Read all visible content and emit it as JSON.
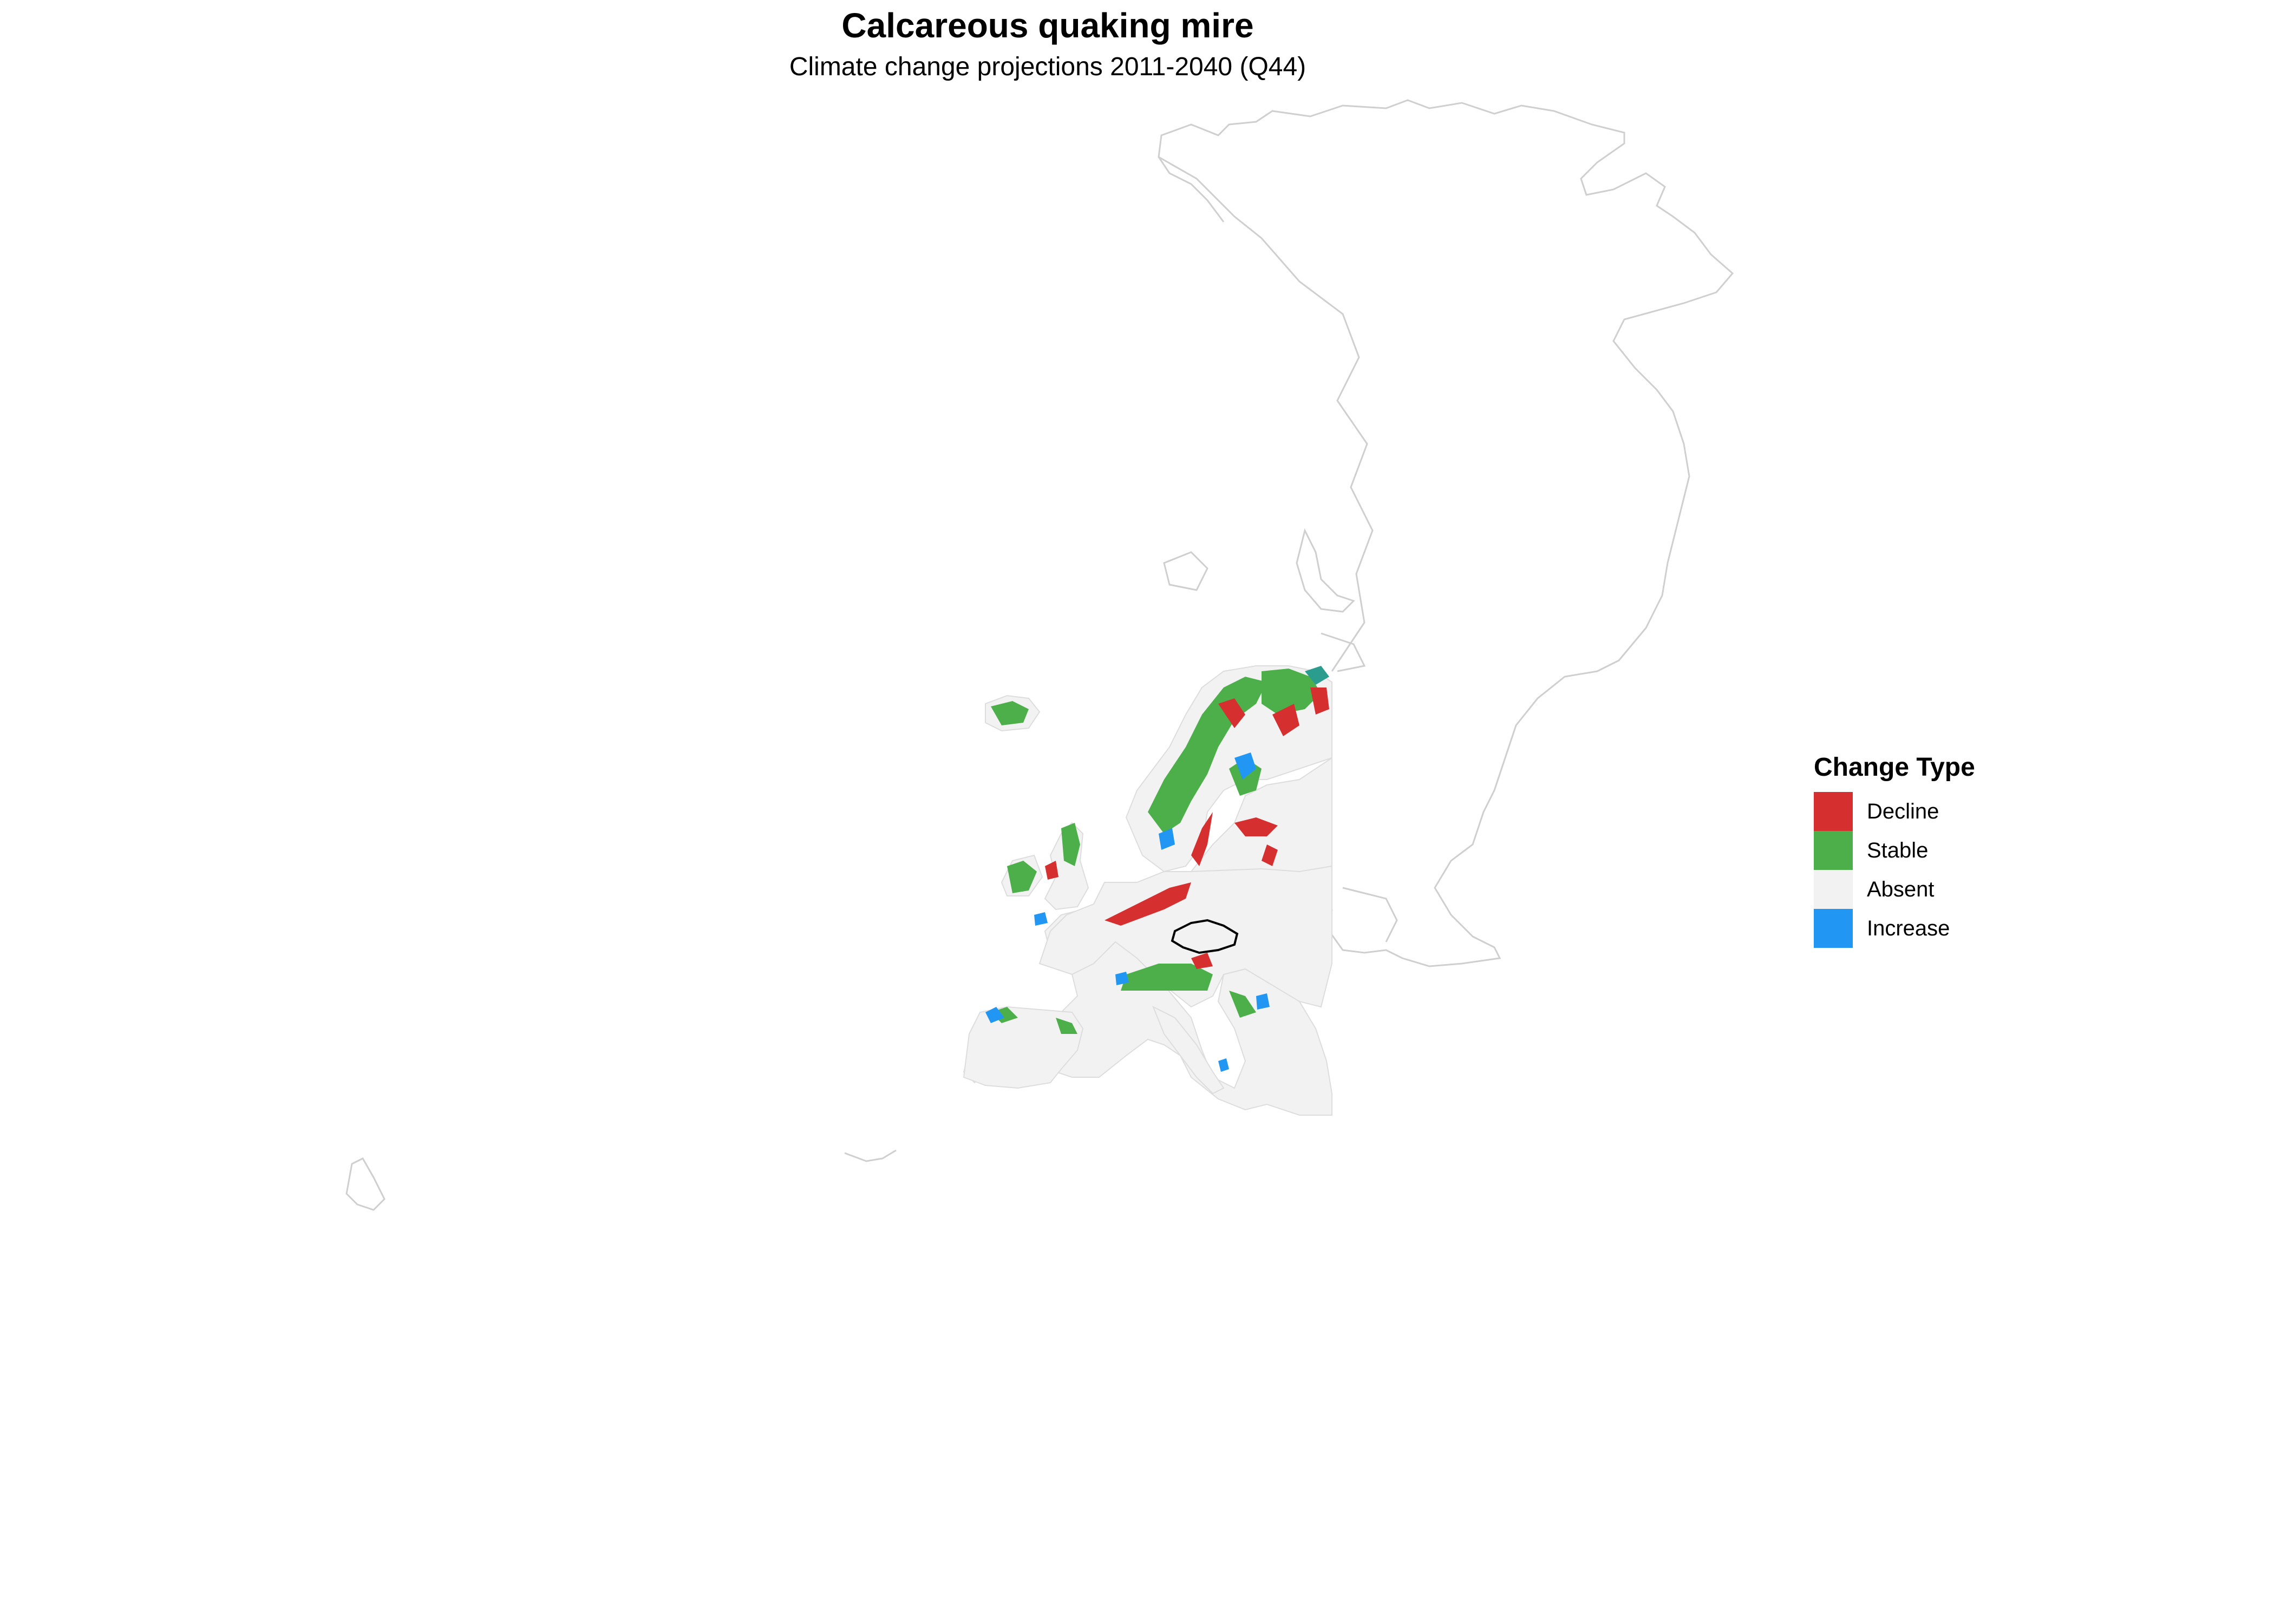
{
  "title": "Calcareous quaking mire",
  "subtitle": "Climate change projections 2011-2040 (Q44)",
  "legend": {
    "title": "Change Type",
    "items": [
      {
        "label": "Decline",
        "color": "#d62f2f"
      },
      {
        "label": "Stable",
        "color": "#4daf4a"
      },
      {
        "label": "Absent",
        "color": "#f2f2f2"
      },
      {
        "label": "Increase",
        "color": "#2196f3"
      }
    ]
  },
  "colors": {
    "outline": "#cfcfcf",
    "absent_fill": "#f2f2f2",
    "highlight_border": "#000000",
    "teal_patch": "#2a9d8f"
  }
}
